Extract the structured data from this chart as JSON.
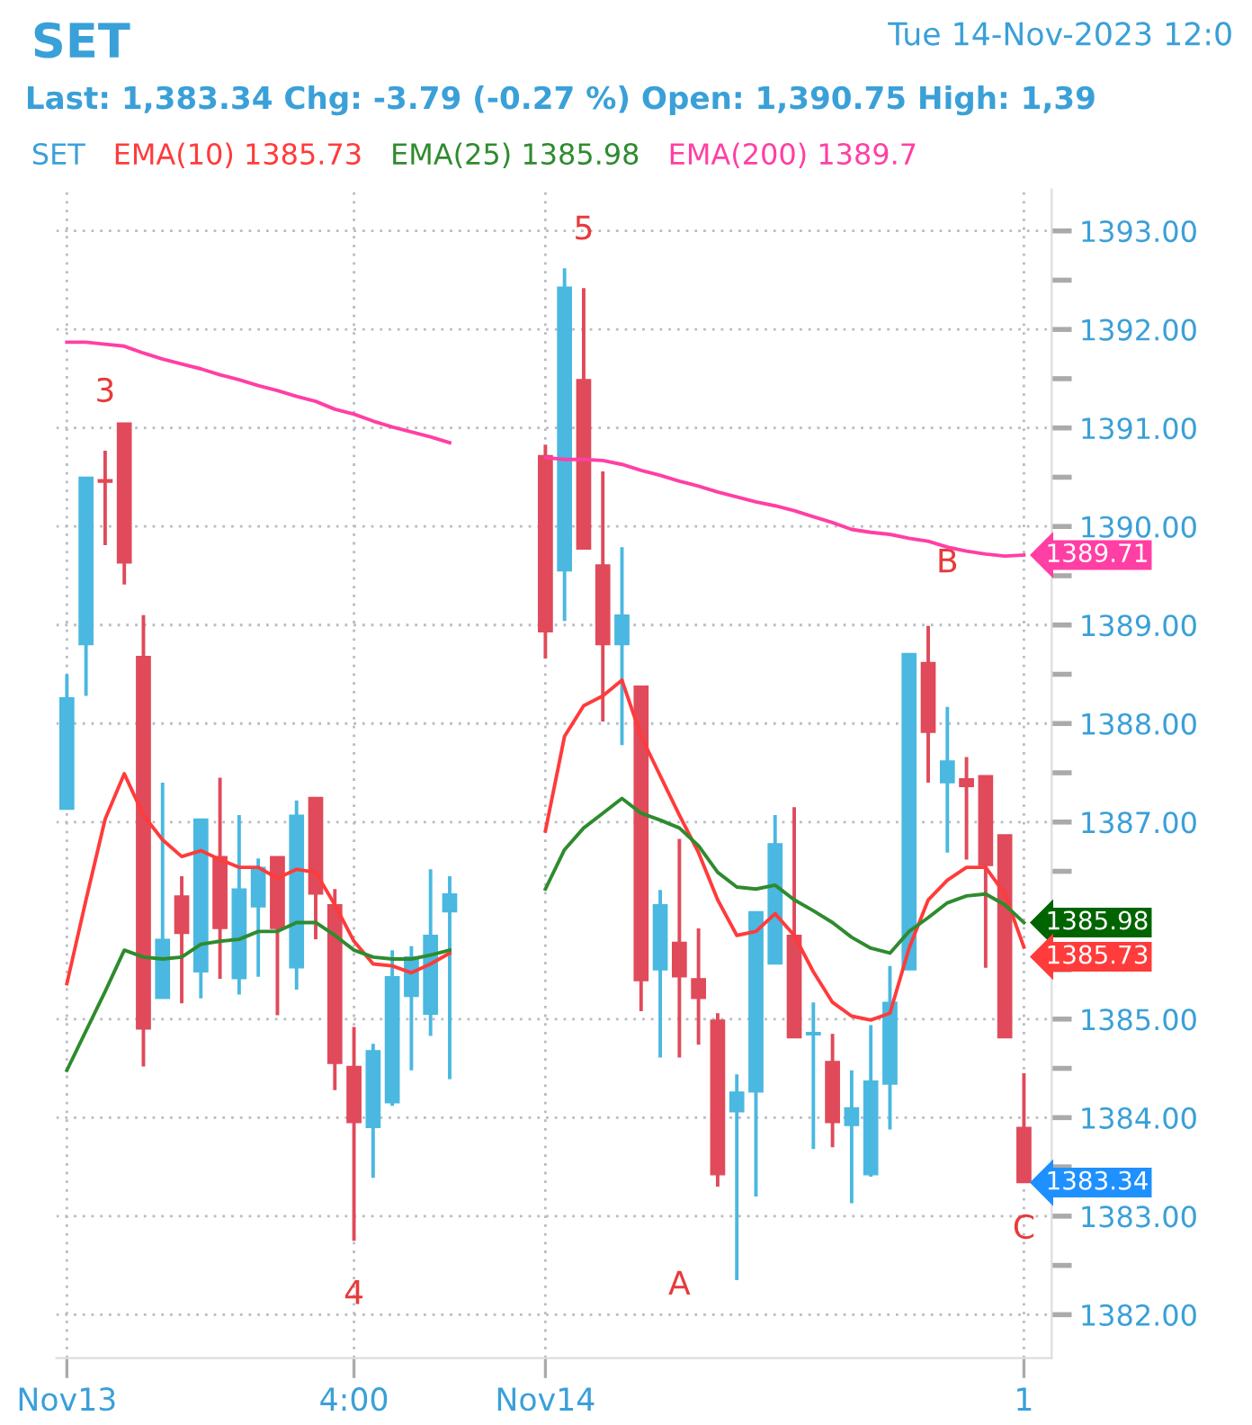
{
  "chart_data": {
    "type": "candlestick",
    "title": "SET",
    "subtitle": "Last: 1,383.34 Chg: -3.79 (-0.27 %) Open: 1,390.75 High: 1,39",
    "legend_title": "SET",
    "categories": [
      "Nov13",
      null,
      null,
      null,
      null,
      null,
      null,
      null,
      null,
      null,
      null,
      null,
      null,
      null,
      null,
      "4:00",
      null,
      null,
      null,
      null,
      null,
      null,
      null,
      null,
      null,
      "Nov14",
      null,
      null,
      null,
      null,
      null,
      null,
      null,
      null,
      null,
      null,
      null,
      null,
      null,
      null,
      null,
      null,
      null,
      null,
      null,
      null,
      null,
      null,
      null,
      null,
      "1"
    ],
    "ohlc": [
      [
        1387.13,
        1388.5,
        1387.13,
        1388.26
      ],
      [
        1388.8,
        1390.5,
        1388.28,
        1390.5
      ],
      [
        1390.47,
        1390.77,
        1389.81,
        1390.45
      ],
      [
        1391.05,
        1391.05,
        1389.41,
        1389.63
      ],
      [
        1388.68,
        1389.1,
        1384.52,
        1384.9
      ],
      [
        1385.21,
        1387.4,
        1385.21,
        1385.81
      ],
      [
        1386.25,
        1386.45,
        1385.16,
        1385.87
      ],
      [
        1385.48,
        1387.03,
        1385.21,
        1387.03
      ],
      [
        1386.65,
        1387.45,
        1385.41,
        1385.92
      ],
      [
        1385.41,
        1387.07,
        1385.25,
        1386.32
      ],
      [
        1386.14,
        1386.63,
        1385.43,
        1386.54
      ],
      [
        1386.65,
        1386.65,
        1385.04,
        1385.92
      ],
      [
        1385.52,
        1387.22,
        1385.3,
        1387.07
      ],
      [
        1387.25,
        1387.25,
        1385.81,
        1386.27
      ],
      [
        1386.16,
        1386.32,
        1384.28,
        1384.55
      ],
      [
        1384.52,
        1384.92,
        1382.75,
        1383.95
      ],
      [
        1383.9,
        1384.75,
        1383.39,
        1384.68
      ],
      [
        1384.15,
        1385.7,
        1384.12,
        1385.43
      ],
      [
        1385.23,
        1385.74,
        1384.48,
        1385.63
      ],
      [
        1385.05,
        1386.52,
        1384.83,
        1385.85
      ],
      [
        1386.09,
        1386.45,
        1384.39,
        1386.27
      ],
      null,
      null,
      null,
      null,
      [
        1390.72,
        1390.83,
        1388.66,
        1388.93
      ],
      [
        1389.55,
        1392.62,
        1389.04,
        1392.43
      ],
      [
        1391.49,
        1392.42,
        1389.77,
        1389.77
      ],
      [
        1389.61,
        1390.56,
        1388.02,
        1388.8
      ],
      [
        1388.8,
        1389.79,
        1387.78,
        1389.1
      ],
      [
        1388.38,
        1388.38,
        1385.08,
        1385.39
      ],
      [
        1385.5,
        1386.31,
        1384.61,
        1386.16
      ],
      [
        1385.78,
        1386.83,
        1384.61,
        1385.43
      ],
      [
        1385.41,
        1385.92,
        1384.74,
        1385.21
      ],
      [
        1384.99,
        1385.06,
        1383.3,
        1383.42
      ],
      [
        1384.06,
        1384.44,
        1382.35,
        1384.26
      ],
      [
        1384.26,
        1386.09,
        1383.2,
        1386.09
      ],
      [
        1385.56,
        1387.07,
        1385.56,
        1386.78
      ],
      [
        1385.85,
        1387.15,
        1384.81,
        1384.81
      ],
      [
        1384.84,
        1385.17,
        1383.68,
        1384.86
      ],
      [
        1384.57,
        1384.85,
        1383.7,
        1383.95
      ],
      [
        1383.92,
        1384.48,
        1383.13,
        1384.1
      ],
      [
        1383.42,
        1384.94,
        1383.4,
        1384.37
      ],
      [
        1384.34,
        1385.54,
        1383.88,
        1385.17
      ],
      [
        1385.5,
        1388.71,
        1385.5,
        1388.71
      ],
      [
        1388.62,
        1388.99,
        1387.4,
        1387.91
      ],
      [
        1387.4,
        1388.17,
        1386.69,
        1387.62
      ],
      [
        1387.44,
        1387.66,
        1386.62,
        1387.36
      ],
      [
        1387.47,
        1387.47,
        1385.52,
        1386.56
      ],
      [
        1386.87,
        1386.87,
        1384.81,
        1384.81
      ],
      [
        1383.9,
        1384.45,
        1383.34,
        1383.34
      ]
    ],
    "colors": [
      "#4ab8e0",
      "#4ab8e0",
      "#e04a5a",
      "#e04a5a",
      "#e04a5a",
      "#4ab8e0",
      "#e04a5a",
      "#4ab8e0",
      "#e04a5a",
      "#4ab8e0",
      "#4ab8e0",
      "#e04a5a",
      "#4ab8e0",
      "#e04a5a",
      "#e04a5a",
      "#e04a5a",
      "#4ab8e0",
      "#4ab8e0",
      "#4ab8e0",
      "#4ab8e0",
      "#4ab8e0",
      null,
      null,
      null,
      null,
      "#e04a5a",
      "#4ab8e0",
      "#e04a5a",
      "#e04a5a",
      "#4ab8e0",
      "#e04a5a",
      "#4ab8e0",
      "#e04a5a",
      "#e04a5a",
      "#e04a5a",
      "#4ab8e0",
      "#4ab8e0",
      "#4ab8e0",
      "#e04a5a",
      "#4ab8e0",
      "#e04a5a",
      "#4ab8e0",
      "#4ab8e0",
      "#4ab8e0",
      "#4ab8e0",
      "#e04a5a",
      "#4ab8e0",
      "#e04a5a",
      "#e04a5a",
      "#e04a5a",
      "#e04a5a"
    ],
    "series": [
      {
        "name": "EMA(10) 1385.73",
        "type": "line",
        "color": "#ff3b3b",
        "values": [
          1385.36,
          1386.21,
          1387.03,
          1387.49,
          1387.07,
          1386.82,
          1386.65,
          1386.71,
          1386.62,
          1386.54,
          1386.54,
          1386.43,
          1386.52,
          1386.49,
          1386.16,
          1385.79,
          1385.56,
          1385.54,
          1385.47,
          1385.56,
          1385.67,
          null,
          null,
          null,
          null,
          1386.91,
          1387.87,
          1388.18,
          1388.28,
          1388.44,
          1387.87,
          1387.47,
          1387.07,
          1386.69,
          1386.21,
          1385.85,
          1385.89,
          1386.07,
          1385.85,
          1385.48,
          1385.17,
          1385.03,
          1384.99,
          1385.06,
          1385.72,
          1386.21,
          1386.41,
          1386.54,
          1386.54,
          1386.27,
          1385.73
        ],
        "value_labels": [
          null,
          null,
          null,
          null,
          null,
          null,
          null,
          null,
          null,
          null,
          null,
          null,
          null,
          null,
          null,
          null,
          null,
          null,
          null,
          null,
          null,
          null,
          null,
          null,
          null,
          null,
          null,
          null,
          null,
          null,
          null,
          null,
          null,
          null,
          null,
          null,
          null,
          null,
          null,
          null,
          null,
          null,
          null,
          null,
          null,
          null,
          null,
          null,
          null,
          null,
          "1385.73"
        ]
      },
      {
        "name": "EMA(25) 1385.98",
        "type": "line",
        "color": "#2e8b2e",
        "values": [
          1384.48,
          1384.88,
          1385.28,
          1385.7,
          1385.63,
          1385.61,
          1385.63,
          1385.76,
          1385.79,
          1385.81,
          1385.89,
          1385.89,
          1385.98,
          1385.98,
          1385.85,
          1385.7,
          1385.63,
          1385.61,
          1385.61,
          1385.65,
          1385.7,
          null,
          null,
          null,
          null,
          1386.32,
          1386.72,
          1386.94,
          1387.09,
          1387.24,
          1387.09,
          1387.02,
          1386.94,
          1386.76,
          1386.49,
          1386.34,
          1386.32,
          1386.36,
          1386.21,
          1386.1,
          1385.98,
          1385.83,
          1385.72,
          1385.67,
          1385.89,
          1386.03,
          1386.18,
          1386.25,
          1386.27,
          1386.16,
          1385.98
        ],
        "value_labels": [
          null,
          null,
          null,
          null,
          null,
          null,
          null,
          null,
          null,
          null,
          null,
          null,
          null,
          null,
          null,
          null,
          null,
          null,
          null,
          null,
          null,
          null,
          null,
          null,
          null,
          null,
          null,
          null,
          null,
          null,
          null,
          null,
          null,
          null,
          null,
          null,
          null,
          null,
          null,
          null,
          null,
          null,
          null,
          null,
          null,
          null,
          null,
          null,
          null,
          null,
          "1385.98"
        ]
      },
      {
        "name": "EMA(200) 1389.7",
        "type": "line",
        "color": "#ff3fa4",
        "values": [
          1391.87,
          1391.87,
          1391.85,
          1391.83,
          1391.76,
          1391.7,
          1391.65,
          1391.6,
          1391.54,
          1391.49,
          1391.43,
          1391.38,
          1391.32,
          1391.27,
          1391.19,
          1391.14,
          1391.07,
          1391.01,
          1390.96,
          1390.91,
          1390.85,
          null,
          null,
          null,
          null,
          1390.7,
          1390.68,
          1390.68,
          1390.67,
          1390.63,
          1390.57,
          1390.52,
          1390.46,
          1390.41,
          1390.35,
          1390.3,
          1390.25,
          1390.21,
          1390.16,
          1390.1,
          1390.04,
          1389.97,
          1389.94,
          1389.92,
          1389.88,
          1389.85,
          1389.79,
          1389.75,
          1389.72,
          1389.7,
          1389.71
        ],
        "value_labels": [
          null,
          null,
          null,
          null,
          null,
          null,
          null,
          null,
          null,
          null,
          null,
          null,
          null,
          null,
          null,
          null,
          null,
          null,
          null,
          null,
          null,
          null,
          null,
          null,
          null,
          null,
          null,
          null,
          null,
          null,
          null,
          null,
          null,
          null,
          null,
          null,
          null,
          null,
          null,
          null,
          null,
          null,
          null,
          null,
          null,
          null,
          null,
          null,
          null,
          null,
          "1389.71"
        ]
      }
    ],
    "ylim": [
      1381.56,
      1393.42
    ],
    "yticks": [
      {
        "value": 1382,
        "label": "1382.00"
      },
      {
        "value": 1382.5,
        "label": null
      },
      {
        "value": 1383,
        "label": "1383.00"
      },
      {
        "value": 1383.5,
        "label": null
      },
      {
        "value": 1384,
        "label": "1384.00"
      },
      {
        "value": 1384.5,
        "label": null
      },
      {
        "value": 1385,
        "label": "1385.00"
      },
      {
        "value": 1385.5,
        "label": null
      },
      {
        "value": 1386,
        "label": null
      },
      {
        "value": 1386.5,
        "label": null
      },
      {
        "value": 1387,
        "label": "1387.00"
      },
      {
        "value": 1387.5,
        "label": null
      },
      {
        "value": 1388,
        "label": "1388.00"
      },
      {
        "value": 1388.5,
        "label": null
      },
      {
        "value": 1389,
        "label": "1389.00"
      },
      {
        "value": 1389.5,
        "label": null
      },
      {
        "value": 1390,
        "label": "1390.00"
      },
      {
        "value": 1390.5,
        "label": null
      },
      {
        "value": 1391,
        "label": "1391.00"
      },
      {
        "value": 1391.5,
        "label": null
      },
      {
        "value": 1392,
        "label": "1392.00"
      },
      {
        "value": 1392.5,
        "label": null
      },
      {
        "value": 1393,
        "label": "1393.00"
      }
    ],
    "grid": true,
    "legend": "top left",
    "marker": "none",
    "line_style": "solid",
    "annotations": [
      "3",
      "4",
      "5",
      "A",
      "B",
      "C",
      "Tue 14-Nov-2023 12:0",
      "1383.34"
    ]
  }
}
